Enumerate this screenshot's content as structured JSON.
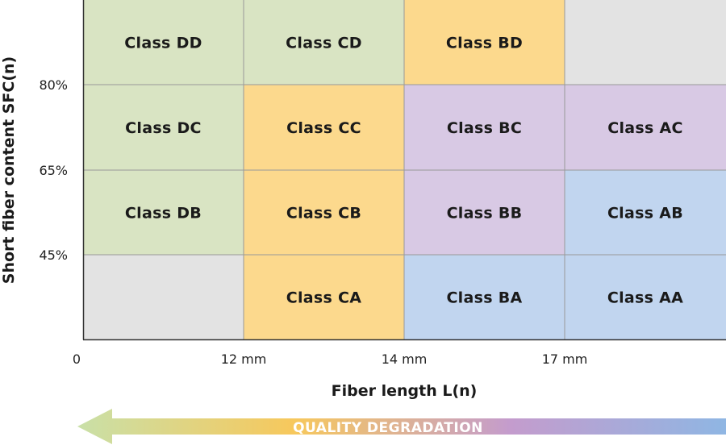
{
  "chart_data": {
    "type": "heatmap",
    "xlabel": "Fiber length L(n)",
    "ylabel": "Short fiber content SFC(n)",
    "x_ticks": [
      {
        "label": "0",
        "value": 0
      },
      {
        "label": "12 mm",
        "value": 12
      },
      {
        "label": "14 mm",
        "value": 14
      },
      {
        "label": "17 mm",
        "value": 17
      }
    ],
    "y_ticks": [
      {
        "label": "45%",
        "value": 45
      },
      {
        "label": "65%",
        "value": 65
      },
      {
        "label": "80%",
        "value": 80
      }
    ],
    "x_bands": [
      "< 12 mm",
      "12–14 mm",
      "14–17 mm",
      "> 17 mm"
    ],
    "y_bands": [
      "< 45%",
      "45–65%",
      "65–80%",
      "> 80%"
    ],
    "cells": [
      {
        "col": 0,
        "row": 0,
        "label": "",
        "group": "none"
      },
      {
        "col": 1,
        "row": 0,
        "label": "Class CA",
        "group": "C"
      },
      {
        "col": 2,
        "row": 0,
        "label": "Class BA",
        "group": "B"
      },
      {
        "col": 3,
        "row": 0,
        "label": "Class AA",
        "group": "A"
      },
      {
        "col": 0,
        "row": 1,
        "label": "Class DB",
        "group": "D"
      },
      {
        "col": 1,
        "row": 1,
        "label": "Class CB",
        "group": "C"
      },
      {
        "col": 2,
        "row": 1,
        "label": "Class BB",
        "group": "B2"
      },
      {
        "col": 3,
        "row": 1,
        "label": "Class AB",
        "group": "A"
      },
      {
        "col": 0,
        "row": 2,
        "label": "Class DC",
        "group": "D"
      },
      {
        "col": 1,
        "row": 2,
        "label": "Class CC",
        "group": "C"
      },
      {
        "col": 2,
        "row": 2,
        "label": "Class BC",
        "group": "B2"
      },
      {
        "col": 3,
        "row": 2,
        "label": "Class AC",
        "group": "B2"
      },
      {
        "col": 0,
        "row": 3,
        "label": "Class DD",
        "group": "D"
      },
      {
        "col": 1,
        "row": 3,
        "label": "Class CD",
        "group": "D"
      },
      {
        "col": 2,
        "row": 3,
        "label": "Class BD",
        "group": "C"
      },
      {
        "col": 3,
        "row": 3,
        "label": "",
        "group": "none"
      }
    ],
    "group_colors": {
      "none": "#e3e3e3",
      "D": "#d9e4c3",
      "C": "#fcd98d",
      "B2": "#d8c9e4",
      "B": "#c1d5ef",
      "A": "#c1d5ef"
    },
    "grid_color": "#999999",
    "axis_color": "#333333",
    "quality_arrow": {
      "label": "QUALITY DEGRADATION",
      "direction": "left",
      "gradient": [
        "#c9e0a8",
        "#f7c85c",
        "#c49ccd",
        "#8fb6e3"
      ]
    }
  }
}
